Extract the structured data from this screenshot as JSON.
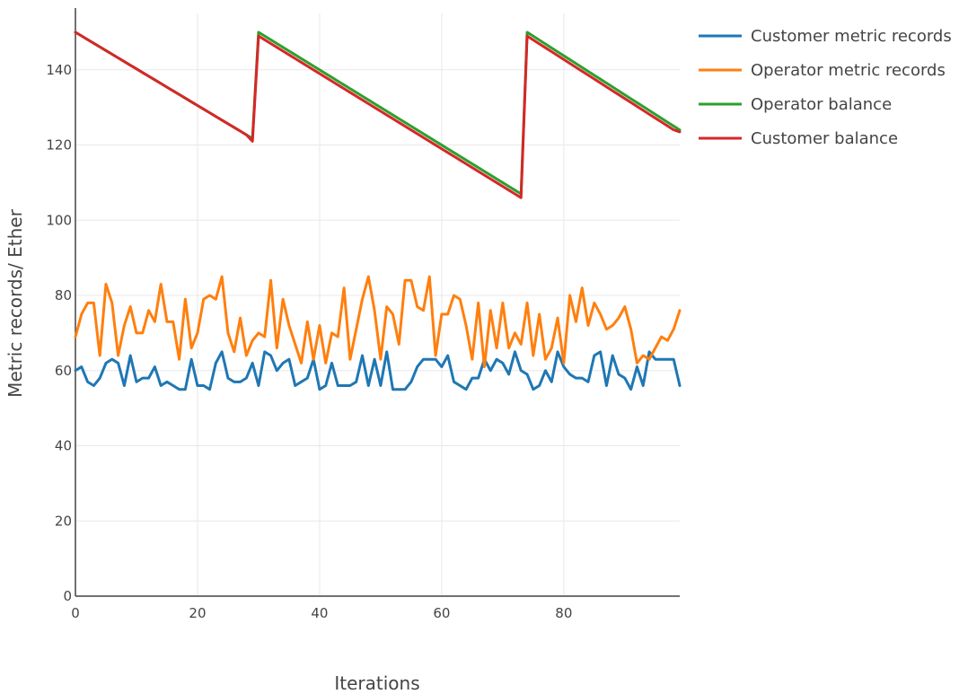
{
  "chart_data": {
    "type": "line",
    "title": "",
    "xlabel": "Iterations",
    "ylabel": "Metric records/ Ether",
    "xlim": [
      0,
      99
    ],
    "ylim": [
      0,
      155
    ],
    "xticks": [
      0,
      20,
      40,
      60,
      80
    ],
    "yticks": [
      0,
      20,
      40,
      60,
      80,
      100,
      120,
      140
    ],
    "grid": true,
    "legend_position": "top-right",
    "x": [
      0,
      1,
      2,
      3,
      4,
      5,
      6,
      7,
      8,
      9,
      10,
      11,
      12,
      13,
      14,
      15,
      16,
      17,
      18,
      19,
      20,
      21,
      22,
      23,
      24,
      25,
      26,
      27,
      28,
      29,
      30,
      31,
      32,
      33,
      34,
      35,
      36,
      37,
      38,
      39,
      40,
      41,
      42,
      43,
      44,
      45,
      46,
      47,
      48,
      49,
      50,
      51,
      52,
      53,
      54,
      55,
      56,
      57,
      58,
      59,
      60,
      61,
      62,
      63,
      64,
      65,
      66,
      67,
      68,
      69,
      70,
      71,
      72,
      73,
      74,
      75,
      76,
      77,
      78,
      79,
      80,
      81,
      82,
      83,
      84,
      85,
      86,
      87,
      88,
      89,
      90,
      91,
      92,
      93,
      94,
      95,
      96,
      97,
      98,
      99
    ],
    "series": [
      {
        "name": "Customer metric records",
        "color": "#1f77b4",
        "values": [
          60,
          61,
          57,
          56,
          58,
          62,
          63,
          62,
          56,
          64,
          57,
          58,
          58,
          61,
          56,
          57,
          56,
          55,
          55,
          63,
          56,
          56,
          55,
          62,
          65,
          58,
          57,
          57,
          58,
          62,
          56,
          65,
          64,
          60,
          62,
          63,
          56,
          57,
          58,
          63,
          55,
          56,
          62,
          56,
          56,
          56,
          57,
          64,
          56,
          63,
          56,
          65,
          55,
          55,
          55,
          57,
          61,
          63,
          63,
          63,
          61,
          64,
          57,
          56,
          55,
          58,
          58,
          63,
          60,
          63,
          62,
          59,
          65,
          60,
          59,
          55,
          56,
          60,
          57,
          65,
          61,
          59,
          58,
          58,
          57,
          64,
          65,
          56,
          64,
          59,
          58,
          55,
          61,
          56,
          65,
          63,
          63,
          63,
          63,
          56
        ]
      },
      {
        "name": "Operator metric records",
        "color": "#ff7f0e",
        "values": [
          69,
          75,
          78,
          78,
          64,
          83,
          78,
          64,
          72,
          77,
          70,
          70,
          76,
          73,
          83,
          73,
          73,
          63,
          79,
          66,
          70,
          79,
          80,
          79,
          85,
          70,
          65,
          74,
          64,
          68,
          70,
          69,
          84,
          66,
          79,
          72,
          67,
          62,
          73,
          63,
          72,
          62,
          70,
          69,
          82,
          63,
          71,
          79,
          85,
          76,
          63,
          77,
          75,
          67,
          84,
          84,
          77,
          76,
          85,
          64,
          75,
          75,
          80,
          79,
          72,
          63,
          78,
          61,
          76,
          66,
          78,
          66,
          70,
          67,
          78,
          64,
          75,
          63,
          66,
          74,
          62,
          80,
          73,
          82,
          72,
          78,
          75,
          71,
          72,
          74,
          77,
          71,
          62,
          64,
          63,
          66,
          69,
          68,
          71,
          76
        ]
      },
      {
        "name": "Operator balance",
        "color": "#2ca02c",
        "values": [
          150,
          149.03,
          148.05,
          147.08,
          146.1,
          145.13,
          144.16,
          143.18,
          142.21,
          141.23,
          140.26,
          139.29,
          138.31,
          137.34,
          136.37,
          135.39,
          134.42,
          133.44,
          132.47,
          131.5,
          130.52,
          129.55,
          128.58,
          127.6,
          126.63,
          125.65,
          124.68,
          123.71,
          122.73,
          121.76,
          150,
          149.0,
          148.0,
          147.0,
          146.0,
          145.0,
          144.0,
          143.0,
          142.0,
          141.0,
          140.0,
          139.0,
          138.0,
          137.0,
          136.0,
          135.0,
          134.0,
          133.0,
          132.0,
          131.0,
          130.0,
          129.0,
          128.0,
          127.0,
          126.0,
          125.0,
          124.0,
          123.0,
          122.0,
          121.0,
          120.0,
          119.0,
          118.0,
          117.0,
          116.0,
          115.0,
          114.0,
          113.0,
          112.0,
          111.0,
          110.0,
          109.0,
          108.0,
          107.0,
          150,
          148.96,
          147.92,
          146.88,
          145.84,
          144.8,
          143.76,
          142.72,
          141.68,
          140.64,
          139.6,
          138.56,
          137.52,
          136.48,
          135.44,
          134.4,
          133.36,
          132.32,
          131.28,
          130.24,
          129.2,
          128.16,
          127.12,
          126.08,
          125.04,
          124.0
        ]
      },
      {
        "name": "Customer balance",
        "color": "#d62728",
        "values": [
          150,
          149.03,
          148.05,
          147.08,
          146.1,
          145.13,
          144.16,
          143.18,
          142.21,
          141.23,
          140.26,
          139.29,
          138.31,
          137.34,
          136.37,
          135.39,
          134.42,
          133.44,
          132.47,
          131.5,
          130.52,
          129.55,
          128.58,
          127.6,
          126.63,
          125.65,
          124.68,
          123.71,
          122.73,
          121.0,
          149,
          148.0,
          147.0,
          146.0,
          145.0,
          144.0,
          143.0,
          142.0,
          141.0,
          140.0,
          139.0,
          138.0,
          137.0,
          136.0,
          135.0,
          134.0,
          133.0,
          132.0,
          131.0,
          130.0,
          129.0,
          128.0,
          127.0,
          126.0,
          125.0,
          124.0,
          123.0,
          122.0,
          121.0,
          120.0,
          119.0,
          118.0,
          117.0,
          116.0,
          115.0,
          114.0,
          113.0,
          112.0,
          111.0,
          110.0,
          109.0,
          108.0,
          107.0,
          106.0,
          149,
          147.96,
          146.92,
          145.88,
          144.84,
          143.8,
          142.76,
          141.72,
          140.68,
          139.64,
          138.6,
          137.56,
          136.52,
          135.48,
          134.44,
          133.4,
          132.36,
          131.32,
          130.28,
          129.24,
          128.2,
          127.16,
          126.12,
          125.08,
          124.04,
          123.5
        ]
      }
    ]
  }
}
